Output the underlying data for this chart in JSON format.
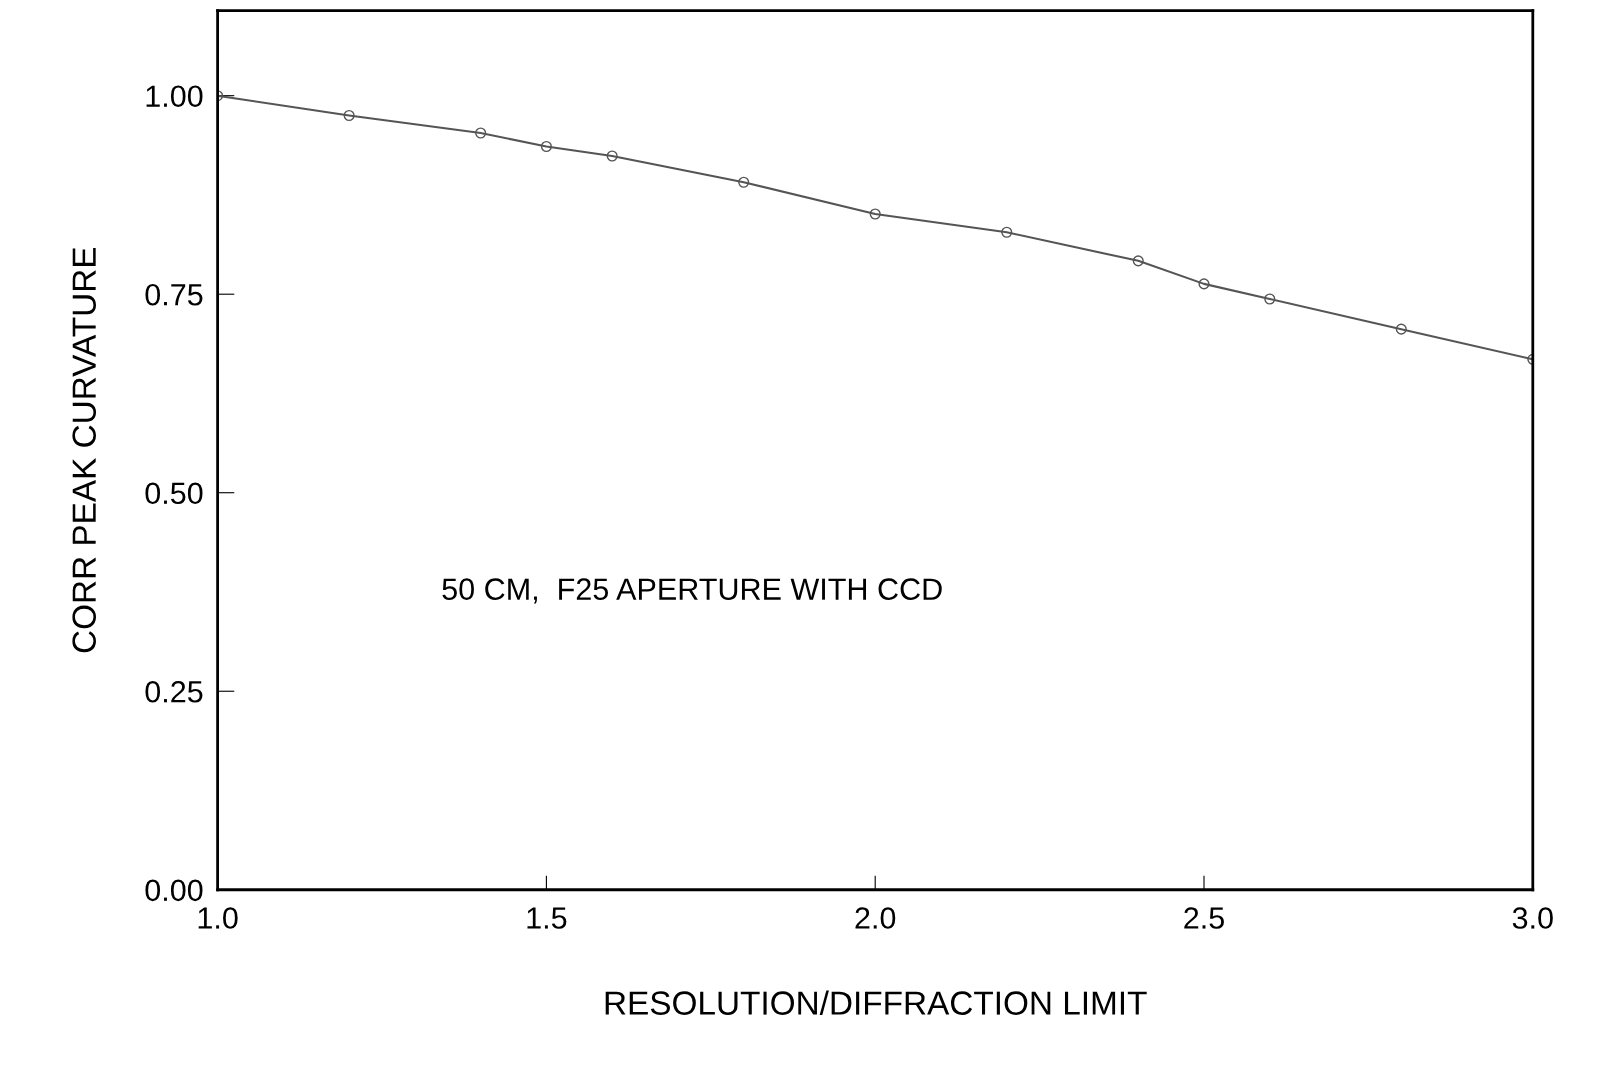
{
  "chart_data": {
    "type": "line",
    "xlabel": "RESOLUTION/DIFFRACTION LIMIT",
    "ylabel": "CORR PEAK CURVATURE",
    "annotations": [
      "50 CM,  F25 APERTURE WITH CCD"
    ],
    "x": [
      1.0,
      1.2,
      1.4,
      1.5,
      1.6,
      1.8,
      2.0,
      2.2,
      2.4,
      2.5,
      2.6,
      2.8,
      3.0
    ],
    "series": [
      {
        "color": "#555555",
        "values": [
          1.0,
          0.975,
          0.953,
          0.936,
          0.924,
          0.891,
          0.851,
          0.828,
          0.792,
          0.763,
          0.744,
          0.706,
          0.668
        ]
      }
    ],
    "xlim": [
      1.0,
      3.0
    ],
    "ylim": [
      0,
      1.107
    ],
    "xticks": [
      {
        "value": 1.0,
        "label": "1.0"
      },
      {
        "value": 1.5,
        "label": "1.5"
      },
      {
        "value": 2.0,
        "label": "2.0"
      },
      {
        "value": 2.5,
        "label": "2.5"
      },
      {
        "value": 3.0,
        "label": "3.0"
      }
    ],
    "yticks": [
      {
        "value": 0,
        "label": "0.00"
      },
      {
        "value": 0.25,
        "label": "0.25"
      },
      {
        "value": 0.5,
        "label": "0.50"
      },
      {
        "value": 0.75,
        "label": "0.75"
      },
      {
        "value": 1.0,
        "label": "1.00"
      }
    ],
    "grid": false,
    "legend": false,
    "marker": "circle",
    "line_style": "solid"
  }
}
